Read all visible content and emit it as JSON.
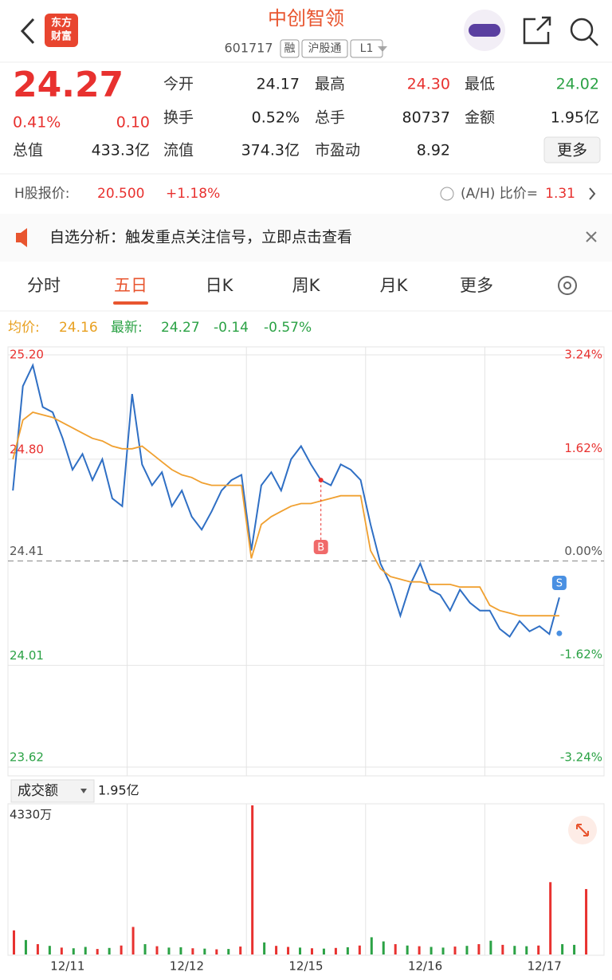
{
  "header": {
    "logo": [
      "东方",
      "财富"
    ],
    "title": "中创智领",
    "code": "601717",
    "badges": [
      "融",
      "沪股通",
      "L1"
    ]
  },
  "quote": {
    "price": "24.27",
    "change_pct": "0.41%",
    "change": "0.10",
    "stats": [
      [
        {
          "label": "今开",
          "value": "24.17"
        },
        {
          "label": "最高",
          "value": "24.30",
          "color": "#e8312f"
        },
        {
          "label": "最低",
          "value": "24.02",
          "color": "#2ba245"
        }
      ],
      [
        {
          "label": "换手",
          "value": "0.52%"
        },
        {
          "label": "总手",
          "value": "80737"
        },
        {
          "label": "金额",
          "value": "1.95亿"
        }
      ],
      [
        {
          "label": "总值",
          "value": "433.3亿"
        },
        {
          "label": "流值",
          "value": "374.3亿"
        },
        {
          "label": "市盈动",
          "value": "8.92"
        }
      ]
    ],
    "more": "更多"
  },
  "hshare": {
    "label": "H股报价:",
    "price": "20.500",
    "change": "+1.18%",
    "ratio_label": "(A/H) 比价=",
    "ratio": "1.31"
  },
  "notice": "自选分析：触发重点关注信号，立即点击查看",
  "tabs": [
    "分时",
    "五日",
    "日K",
    "周K",
    "月K",
    "更多"
  ],
  "chart_data": {
    "type": "line",
    "summary": {
      "avg_label": "均价:",
      "avg": "24.16",
      "latest_label": "最新:",
      "latest": "24.27",
      "change": "-0.14",
      "change_pct": "-0.57%"
    },
    "days": [
      "12/11",
      "12/12",
      "12/15",
      "12/16",
      "12/17"
    ],
    "ylim": [
      23.62,
      25.2
    ],
    "yticks": [
      {
        "value": 25.2,
        "label": "25.20"
      },
      {
        "value": 24.8,
        "label": "24.80"
      },
      24.41,
      24.01,
      23.62
    ],
    "y2lim": [
      -3.24,
      3.24
    ],
    "y2ticks": [
      {
        "value": 3.24,
        "label": "3.24%"
      },
      {
        "value": 1.62,
        "label": "1.62%"
      },
      {
        "value": 0,
        "label": "0.00%"
      },
      {
        "value": -1.62,
        "label": "-1.62%"
      },
      {
        "value": -3.24,
        "label": "-3.24%"
      }
    ],
    "series": [
      {
        "name": "价格",
        "color": "#2f6fc4",
        "values": [
          24.68,
          25.08,
          25.16,
          25.0,
          24.98,
          24.88,
          24.76,
          24.82,
          24.72,
          24.8,
          24.65,
          24.62,
          25.05,
          24.78,
          24.7,
          24.75,
          24.62,
          24.68,
          24.58,
          24.53,
          24.6,
          24.68,
          24.72,
          24.74,
          24.45,
          24.7,
          24.75,
          24.68,
          24.8,
          24.85,
          24.78,
          24.72,
          24.7,
          24.78,
          24.76,
          24.72,
          24.55,
          24.4,
          24.32,
          24.2,
          24.32,
          24.4,
          24.3,
          24.28,
          24.22,
          24.3,
          24.25,
          24.22,
          24.22,
          24.15,
          24.12,
          24.18,
          24.14,
          24.16,
          24.13,
          24.27,
          null,
          null,
          null,
          null
        ]
      },
      {
        "name": "均价",
        "color": "#f0a030",
        "values": [
          24.8,
          24.95,
          24.98,
          24.97,
          24.96,
          24.94,
          24.92,
          24.9,
          24.88,
          24.87,
          24.85,
          24.84,
          24.84,
          24.85,
          24.82,
          24.79,
          24.76,
          24.74,
          24.73,
          24.71,
          24.7,
          24.7,
          24.7,
          24.7,
          24.42,
          24.55,
          24.58,
          24.6,
          24.62,
          24.63,
          24.63,
          24.64,
          24.65,
          24.66,
          24.66,
          24.66,
          24.45,
          24.38,
          24.35,
          24.34,
          24.33,
          24.33,
          24.32,
          24.32,
          24.32,
          24.31,
          24.31,
          24.31,
          24.24,
          24.22,
          24.21,
          24.2,
          24.2,
          24.2,
          24.2,
          24.2,
          null,
          null,
          null,
          null
        ]
      }
    ],
    "annotations": [
      "B",
      "S"
    ],
    "volume": {
      "label": "成交额",
      "total": "1.95亿",
      "max_label": "4330万",
      "ylim": [
        0,
        4330
      ],
      "values": [
        700,
        420,
        300,
        250,
        200,
        180,
        220,
        160,
        190,
        260,
        800,
        300,
        240,
        200,
        210,
        180,
        170,
        150,
        160,
        230,
        4330,
        350,
        250,
        220,
        200,
        180,
        170,
        190,
        210,
        260,
        500,
        380,
        300,
        260,
        240,
        220,
        200,
        230,
        250,
        300,
        400,
        280,
        250,
        240,
        260,
        2100,
        300,
        280,
        1900,
        null
      ],
      "colors": [
        "#e8312f",
        "#2ba245",
        "#e8312f",
        "#2ba245",
        "#e8312f",
        "#2ba245",
        "#2ba245",
        "#e8312f",
        "#2ba245",
        "#e8312f",
        "#e8312f",
        "#2ba245",
        "#e8312f",
        "#2ba245",
        "#2ba245",
        "#e8312f",
        "#2ba245",
        "#e8312f",
        "#2ba245",
        "#e8312f",
        "#e8312f",
        "#2ba245",
        "#e8312f",
        "#e8312f",
        "#2ba245",
        "#e8312f",
        "#2ba245",
        "#e8312f",
        "#2ba245",
        "#e8312f",
        "#2ba245",
        "#2ba245",
        "#e8312f",
        "#2ba245",
        "#e8312f",
        "#2ba245",
        "#2ba245",
        "#e8312f",
        "#2ba245",
        "#e8312f",
        "#2ba245",
        "#e8312f",
        "#2ba245",
        "#2ba245",
        "#e8312f",
        "#e8312f",
        "#2ba245",
        "#2ba245",
        "#e8312f",
        null
      ]
    }
  }
}
